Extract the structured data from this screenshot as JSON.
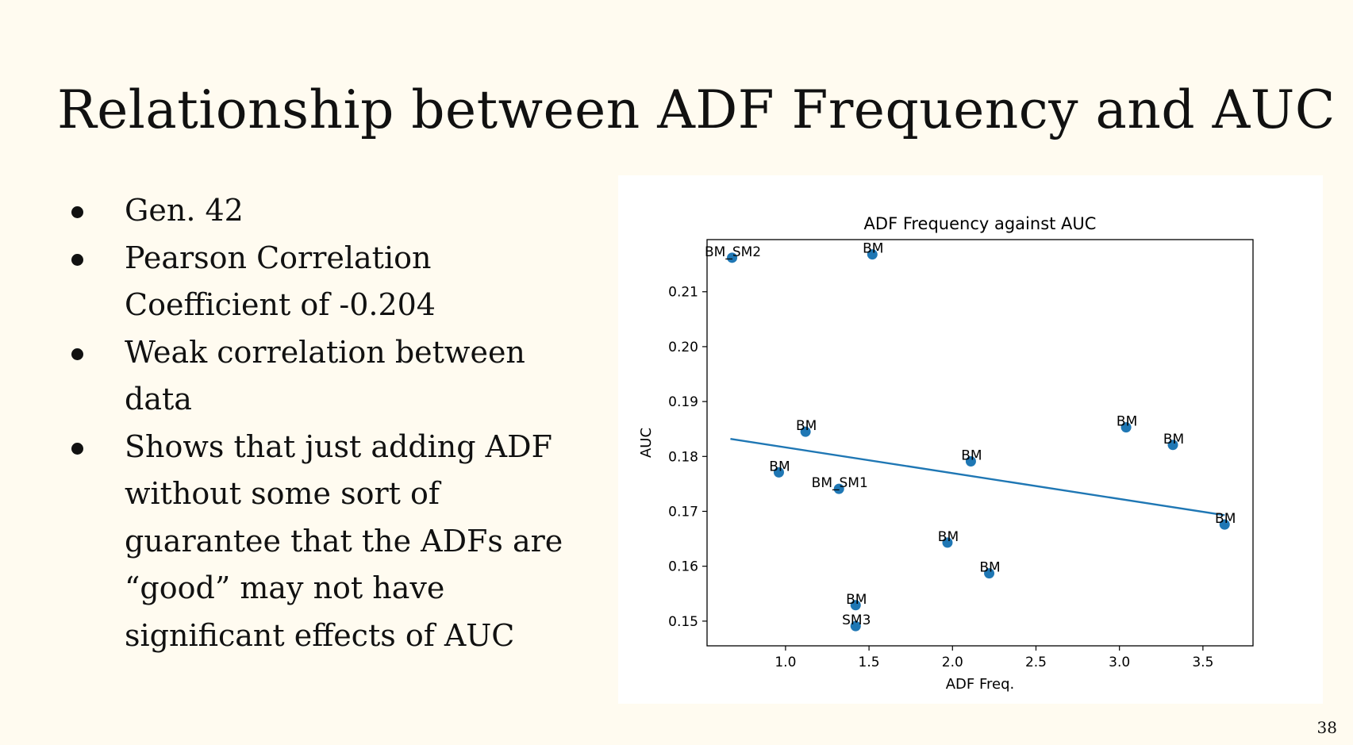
{
  "slide": {
    "title": "Relationship between ADF Frequency and AUC",
    "bullets": [
      "Gen. 42",
      "Pearson Correlation Coefficient of -0.204",
      "Weak correlation between data",
      "Shows that just adding ADF without some sort of guarantee that the ADFs are “good” may not have significant effects of AUC"
    ],
    "page_number": "38"
  },
  "chart_data": {
    "type": "scatter",
    "title": "ADF Frequency against AUC",
    "xlabel": "ADF Freq.",
    "ylabel": "AUC",
    "xlim": [
      0.53,
      3.8
    ],
    "ylim": [
      0.1455,
      0.2195
    ],
    "xticks": [
      1.0,
      1.5,
      2.0,
      2.5,
      3.0,
      3.5
    ],
    "xtick_labels": [
      "1.0",
      "1.5",
      "2.0",
      "2.5",
      "3.0",
      "3.5"
    ],
    "yticks": [
      0.15,
      0.16,
      0.17,
      0.18,
      0.19,
      0.2,
      0.21
    ],
    "ytick_labels": [
      "0.15",
      "0.16",
      "0.17",
      "0.18",
      "0.19",
      "0.20",
      "0.21"
    ],
    "point_color": "#1f77b4",
    "line_color": "#1f77b4",
    "grid": false,
    "points": [
      {
        "x": 0.68,
        "y": 0.2162,
        "label": "BM_SM2"
      },
      {
        "x": 1.52,
        "y": 0.2168,
        "label": "BM"
      },
      {
        "x": 1.12,
        "y": 0.1845,
        "label": "BM"
      },
      {
        "x": 0.96,
        "y": 0.1771,
        "label": "BM"
      },
      {
        "x": 1.32,
        "y": 0.1741,
        "label": "BM_SM1"
      },
      {
        "x": 2.11,
        "y": 0.1791,
        "label": "BM"
      },
      {
        "x": 3.04,
        "y": 0.1853,
        "label": "BM"
      },
      {
        "x": 3.32,
        "y": 0.1821,
        "label": "BM"
      },
      {
        "x": 3.63,
        "y": 0.1676,
        "label": "BM"
      },
      {
        "x": 1.97,
        "y": 0.1643,
        "label": "BM"
      },
      {
        "x": 2.22,
        "y": 0.1587,
        "label": "BM"
      },
      {
        "x": 1.42,
        "y": 0.1529,
        "label": "BM"
      },
      {
        "x": 1.42,
        "y": 0.1491,
        "label": "SM3"
      }
    ],
    "trend_line": {
      "x": [
        0.67,
        3.63
      ],
      "y": [
        0.1832,
        0.1693
      ]
    }
  }
}
